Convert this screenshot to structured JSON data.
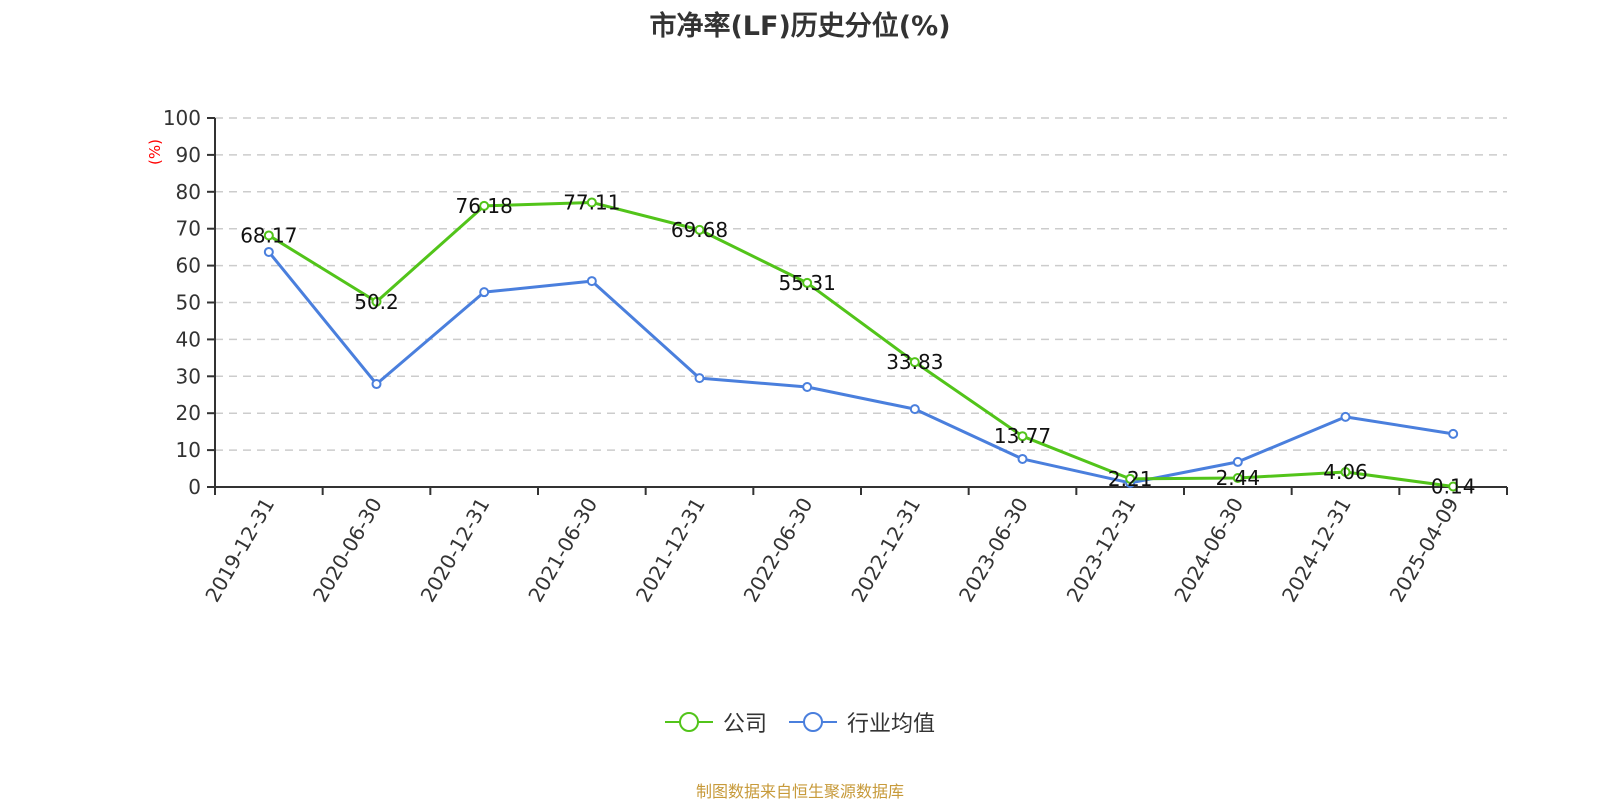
{
  "title": "市净率(LF)历史分位(%)",
  "footer": "制图数据来自恒生聚源数据库",
  "colors": {
    "company": "#52c41a",
    "industry": "#4a7fdd",
    "axis": "#333333",
    "grid": "#cccccc",
    "unit_label": "#ff0000",
    "footer": "#c79a3a"
  },
  "legend": [
    {
      "label": "公司",
      "color": "#52c41a"
    },
    {
      "label": "行业均值",
      "color": "#4a7fdd"
    }
  ],
  "chart_data": {
    "type": "line",
    "title": "市净率(LF)历史分位(%)",
    "xlabel": "",
    "ylabel": "(%)",
    "ylim": [
      0,
      100
    ],
    "yticks": [
      0,
      10,
      20,
      30,
      40,
      50,
      60,
      70,
      80,
      90,
      100
    ],
    "grid": true,
    "legend_position": "bottom",
    "categories": [
      "2019-12-31",
      "2020-06-30",
      "2020-12-31",
      "2021-06-30",
      "2021-12-31",
      "2022-06-30",
      "2022-12-31",
      "2023-06-30",
      "2023-12-31",
      "2024-06-30",
      "2024-12-31",
      "2025-04-09"
    ],
    "series": [
      {
        "name": "公司",
        "color": "#52c41a",
        "show_labels": true,
        "values": [
          68.17,
          50.2,
          76.18,
          77.11,
          69.68,
          55.31,
          33.83,
          13.77,
          2.21,
          2.44,
          4.06,
          0.14
        ]
      },
      {
        "name": "行业均值",
        "color": "#4a7fdd",
        "show_labels": false,
        "values": [
          63.7,
          27.9,
          52.8,
          55.8,
          29.5,
          27.1,
          21.1,
          7.6,
          1.1,
          6.8,
          19.0,
          14.4
        ]
      }
    ]
  }
}
